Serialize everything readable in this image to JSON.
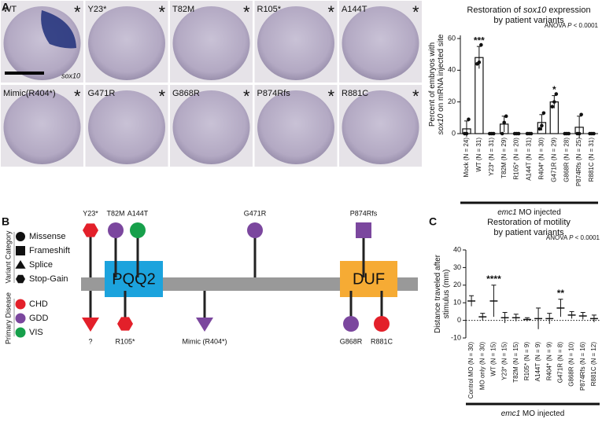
{
  "panel_a": {
    "label": "A",
    "stain_label": "sox10",
    "embryos": [
      {
        "label": "WT",
        "flag": "*"
      },
      {
        "label": "Y23*",
        "flag": "*"
      },
      {
        "label": "T82M",
        "flag": "*"
      },
      {
        "label": "R105*",
        "flag": "*"
      },
      {
        "label": "A144T",
        "flag": "*"
      },
      {
        "label": "Mimic(R404*)",
        "flag": "*"
      },
      {
        "label": "G471R",
        "flag": "*"
      },
      {
        "label": "G868R",
        "flag": "*"
      },
      {
        "label": "P874Rfs",
        "flag": "*"
      },
      {
        "label": "R881C",
        "flag": "*"
      }
    ]
  },
  "panel_b": {
    "label": "B",
    "category_title": "Variant Category",
    "categories": [
      "Missense",
      "Frameshift",
      "Splice",
      "Stop-Gain"
    ],
    "disease_title": "Primary Disease",
    "diseases": [
      {
        "name": "CHD",
        "color": "#e3202a"
      },
      {
        "name": "GDD",
        "color": "#7b479e"
      },
      {
        "name": "VIS",
        "color": "#17a04b"
      }
    ],
    "domains": [
      {
        "label": "PQQ2",
        "color": "#1ca3dd"
      },
      {
        "label": "DUF",
        "color": "#f6ab34"
      }
    ],
    "variants": [
      {
        "label": "Y23*",
        "category": "Stop-Gain",
        "disease": "CHD",
        "side": "above"
      },
      {
        "label": "T82M",
        "category": "Missense",
        "disease": "GDD",
        "side": "above"
      },
      {
        "label": "A144T",
        "category": "Missense",
        "disease": "VIS",
        "side": "above"
      },
      {
        "label": "G471R",
        "category": "Missense",
        "disease": "GDD",
        "side": "above"
      },
      {
        "label": "P874Rfs",
        "category": "Frameshift",
        "disease": "GDD",
        "side": "above"
      },
      {
        "label": "?",
        "category": "Splice",
        "disease": "CHD",
        "side": "below"
      },
      {
        "label": "R105*",
        "category": "Stop-Gain",
        "disease": "CHD",
        "side": "below"
      },
      {
        "label": "Mimic (R404*)",
        "category": "Splice",
        "disease": "GDD",
        "side": "below"
      },
      {
        "label": "G868R",
        "category": "Missense",
        "disease": "GDD",
        "side": "below"
      },
      {
        "label": "R881C",
        "category": "Missense",
        "disease": "CHD",
        "side": "below"
      }
    ]
  },
  "chart_data": [
    {
      "type": "bar",
      "title_lines": [
        [
          "Restoration of ",
          {
            "text": "sox10",
            "style": "italic"
          },
          " expression"
        ],
        [
          "by patient variants"
        ]
      ],
      "stat_text": [
        "ANOVA ",
        {
          "text": "P",
          "style": "italic"
        },
        " < 0.0001"
      ],
      "ylabel_lines": [
        [
          "Percent of embryos with"
        ],
        [
          {
            "text": "sox10",
            "style": "italic"
          },
          " on mRNA injected site"
        ]
      ],
      "group_label": [
        {
          "text": "emc1",
          "style": "italic"
        },
        " MO injected"
      ],
      "categories": [
        "Mock (N = 24)",
        "WT (N = 31)",
        "Y23* (N = 31)",
        "T82M (N = 29)",
        "R105* (N = 20)",
        "A144T (N = 31)",
        "R404* (N = 30)",
        "G471R (N = 29)",
        "G868R (N = 28)",
        "P874Rfs (N = 25)",
        "R881C (N = 31)"
      ],
      "values": [
        3,
        48,
        0,
        6,
        0,
        0,
        7,
        20,
        0,
        4,
        0
      ],
      "errors": [
        5,
        7,
        0,
        5,
        0,
        0,
        5,
        4,
        0,
        7,
        0
      ],
      "points": [
        [
          0,
          0,
          9
        ],
        [
          44,
          45,
          56
        ],
        [
          0,
          0,
          0
        ],
        [
          0,
          7,
          11
        ],
        [
          0,
          0,
          0
        ],
        [
          0,
          0,
          0
        ],
        [
          3,
          5,
          13
        ],
        [
          17,
          20,
          25
        ],
        [
          0,
          0,
          0
        ],
        [
          0,
          0,
          12
        ],
        [
          0,
          0,
          0
        ]
      ],
      "significance": [
        null,
        "***",
        null,
        null,
        null,
        null,
        null,
        "*",
        null,
        null,
        null
      ],
      "color": "#ffffff",
      "ylim": [
        0,
        62
      ],
      "yticks": [
        0,
        20,
        40,
        60
      ]
    },
    {
      "type": "strip",
      "panel_label": "C",
      "title_lines": [
        [
          "Restoration of motility"
        ],
        [
          "by patient variants"
        ]
      ],
      "stat_text": [
        "ANOVA ",
        {
          "text": "P",
          "style": "italic"
        },
        " < 0.0001"
      ],
      "ylabel_lines": [
        [
          "Distance traveled after"
        ],
        [
          "stimulus (mm)"
        ]
      ],
      "group_label": [
        {
          "text": "emc1",
          "style": "italic"
        },
        " MO injected"
      ],
      "categories": [
        "Control MO (N = 30)",
        "MO only (N = 30)",
        "WT (N = 15)",
        "Y23* (N = 15)",
        "T82M (N = 15)",
        "R105* (N = 9)",
        "A144T (N = 9)",
        "R404* (N = 9)",
        "G471R (N = 8)",
        "G868R (N = 10)",
        "P874Rfs (N = 16)",
        "R881C (N = 12)"
      ],
      "values": [
        11,
        2,
        11,
        1.5,
        1.5,
        0.5,
        1,
        1,
        7,
        3,
        2.5,
        1
      ],
      "errors": [
        3,
        2,
        9,
        3,
        2,
        1,
        6,
        3,
        5,
        2,
        2,
        2
      ],
      "significance": [
        null,
        null,
        "****",
        null,
        null,
        null,
        null,
        null,
        "**",
        null,
        null,
        null
      ],
      "color": "#111111",
      "ylim": [
        -10,
        40
      ],
      "yticks": [
        -10,
        0,
        10,
        20,
        30,
        40
      ]
    }
  ]
}
